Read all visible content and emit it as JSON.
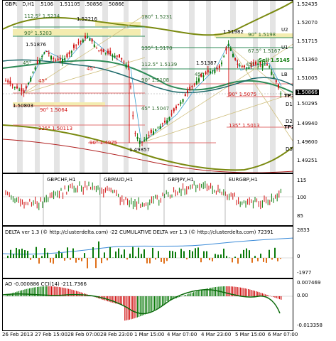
{
  "main": {
    "title": "GBPUSD,H1  1.5106 5 1.51105 1.50856 1.50866",
    "price_scale": [
      "1.52435",
      "1.52070",
      "1.51715",
      "1.51360",
      "1.51005",
      "1.50866",
      "1.50295",
      "1.49940",
      "1.49600",
      "1.49251"
    ],
    "current_price": "1.50866",
    "levels": {
      "U2": "U2",
      "U1": "U1",
      "LB": "LB",
      "TP1": "TP1",
      "D1": "D1",
      "TP2": "TP2",
      "D2": "D2",
      "D3": "D3"
    },
    "annotations": [
      "112.5° 1.5234",
      "1.52216",
      "180° 1.5231",
      "90° 1.5203",
      "1.51876",
      "45°",
      "135° 1.5170",
      "1.51982",
      "90° 1.5198",
      "67.5° 1.5167",
      "Sell 1.5145",
      "45°",
      "112.5° 1.5139",
      "45°",
      "1.51387",
      "90° 1.5108",
      "45°",
      "45°",
      "1.50803",
      "90° 1.5064",
      "45° 1.5047",
      "90° 1.5075",
      "225° 1.50113",
      "135° 1.5013",
      "90° 1.4975",
      "1.49857"
    ]
  },
  "compare": {
    "labels": [
      "GBPCHF,H1",
      "GBPAUD,H1",
      "GBPJPY,H1",
      "EURGBP,H1"
    ],
    "scale": [
      "115",
      "100",
      "85"
    ]
  },
  "delta": {
    "title": "DELTA ver 1.3 (© http://clusterdelta.com) -22  CUMULATIVE DELTA ver 1.3 (© http://clusterdelta.com) 72391",
    "scale": [
      "2833",
      "0",
      "-1977"
    ]
  },
  "ao": {
    "title": "AO -0.000886  CCI(14) -211.7366",
    "scale": [
      "0.007469",
      "0.00",
      "-0.013358"
    ]
  },
  "xaxis": [
    "26 Feb 2013",
    "27 Feb 15:00",
    "28 Feb 07:00",
    "28 Feb 23:00",
    "1 Mar 15:00",
    "4 Mar 07:00",
    "4 Mar 23:00",
    "5 Mar 15:00",
    "6 Mar 07:00"
  ],
  "colors": {
    "bull": "#0a7a0a",
    "bear": "#d01010",
    "fan": "#d0c080",
    "ma": "#2e8b57",
    "band": "#7a8a10"
  }
}
